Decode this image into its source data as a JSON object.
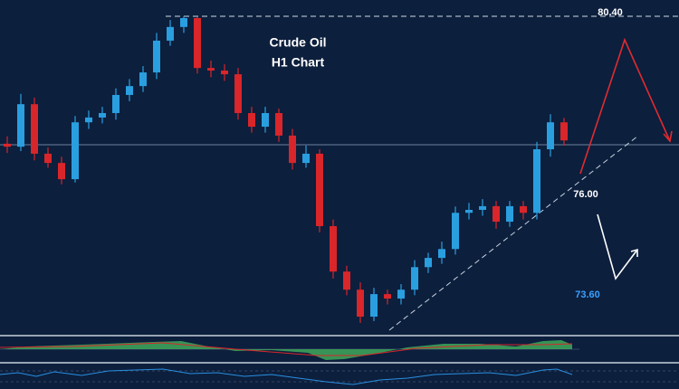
{
  "chart_data": {
    "type": "candlestick",
    "title": "Crude Oil",
    "subtitle": "H1 Chart",
    "open": [
      76.95,
      76.87,
      78.02,
      76.68,
      76.43,
      75.99,
      77.53,
      77.66,
      77.78,
      78.27,
      78.51,
      78.88,
      79.74,
      80.11,
      80.35,
      79.0,
      78.93,
      78.83,
      77.78,
      77.41,
      77.78,
      77.17,
      76.43,
      76.68,
      74.72,
      73.49,
      73.0,
      72.27,
      72.88,
      72.76,
      73.0,
      73.61,
      73.86,
      74.1,
      75.08,
      75.16,
      75.26,
      74.84,
      75.26,
      75.08,
      76.8,
      77.53
    ],
    "high": [
      77.15,
      78.3,
      78.2,
      76.85,
      76.6,
      77.7,
      77.85,
      77.95,
      78.45,
      78.7,
      79.05,
      79.95,
      80.3,
      80.4,
      80.38,
      79.2,
      79.1,
      79.0,
      77.95,
      77.95,
      77.9,
      77.35,
      76.9,
      76.8,
      74.9,
      73.65,
      73.2,
      73.05,
      73.0,
      73.15,
      73.8,
      74.0,
      74.3,
      75.25,
      75.35,
      75.45,
      75.4,
      75.4,
      75.4,
      77.0,
      77.75,
      77.65
    ],
    "low": [
      76.7,
      76.75,
      76.5,
      76.3,
      75.85,
      75.9,
      77.35,
      77.5,
      77.6,
      78.1,
      78.35,
      78.7,
      79.6,
      79.95,
      78.85,
      78.75,
      78.65,
      77.6,
      77.25,
      77.25,
      77.0,
      76.25,
      76.3,
      74.55,
      73.3,
      72.85,
      72.1,
      72.15,
      72.6,
      72.6,
      72.85,
      73.45,
      73.7,
      73.95,
      74.9,
      75.0,
      74.65,
      74.7,
      74.9,
      74.9,
      76.6,
      76.9
    ],
    "close": [
      76.87,
      78.02,
      76.68,
      76.43,
      75.99,
      77.53,
      77.66,
      77.78,
      78.27,
      78.51,
      78.88,
      79.74,
      80.11,
      80.35,
      79.0,
      78.93,
      78.83,
      77.78,
      77.41,
      77.78,
      77.17,
      76.43,
      76.68,
      74.72,
      73.49,
      73.0,
      72.27,
      72.88,
      72.76,
      73.0,
      73.61,
      73.86,
      74.1,
      75.08,
      75.16,
      75.26,
      74.84,
      75.26,
      75.08,
      76.8,
      77.53,
      77.04
    ],
    "up_color": "#2a9fe0",
    "down_color": "#d9262a",
    "ylim": [
      71.83,
      80.84
    ],
    "annotations": [
      {
        "value": 80.4,
        "label": "80.40"
      },
      {
        "value": 76,
        "label": "76.00"
      },
      {
        "value": 73.6,
        "label": "73.60"
      }
    ]
  }
}
